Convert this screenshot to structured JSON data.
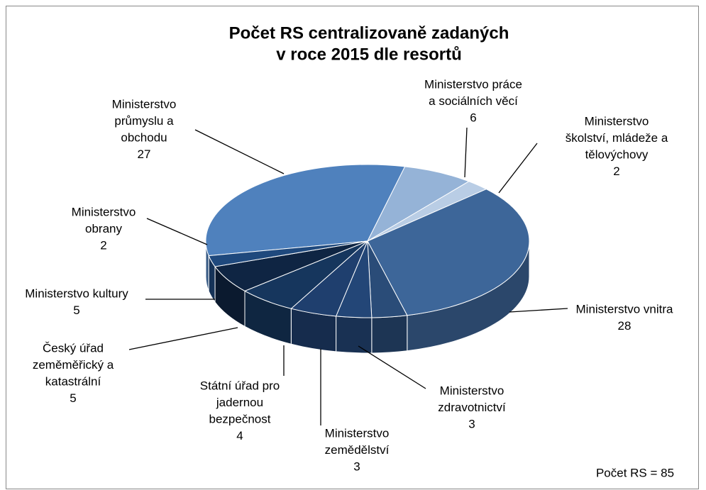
{
  "chart_data": {
    "type": "pie3d",
    "title": [
      "Počet RS centralizovaně zadaných",
      "v roce 2015 dle resortů"
    ],
    "categories": [
      [
        "Ministerstvo",
        "průmyslu a",
        "obchodu"
      ],
      [
        "Ministerstvo práce",
        "a sociálních věcí"
      ],
      [
        "Ministerstvo",
        "školství, mládeže a",
        "tělovýchovy"
      ],
      [
        "Ministerstvo vnitra"
      ],
      [
        "Ministerstvo",
        "zdravotnictví"
      ],
      [
        "Ministerstvo",
        "zemědělství"
      ],
      [
        "Státní úřad pro",
        "jadernou",
        "bezpečnost"
      ],
      [
        "Český úřad",
        "zeměměřický a",
        "katastrální"
      ],
      [
        "Ministerstvo kultury"
      ],
      [
        "Ministerstvo",
        "obrany"
      ]
    ],
    "values": [
      27,
      6,
      2,
      28,
      3,
      3,
      4,
      5,
      5,
      2
    ],
    "colors": [
      "#4f81bd",
      "#95b3d7",
      "#b9cde5",
      "#3d6699",
      "#2a4c78",
      "#234677",
      "#1f3f6e",
      "#16365d",
      "#0f2543",
      "#1f497d"
    ],
    "annotation": "Počet RS = 85"
  }
}
